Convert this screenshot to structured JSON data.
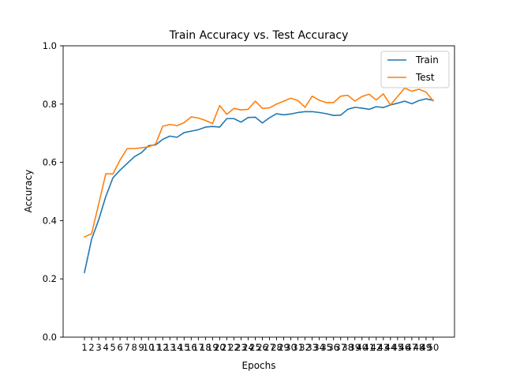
{
  "chart_data": {
    "type": "line",
    "title": "Train Accuracy vs. Test Accuracy",
    "xlabel": "Epochs",
    "ylabel": "Accuracy",
    "ylim": [
      0.0,
      1.0
    ],
    "yticks": [
      "0.0",
      "0.2",
      "0.4",
      "0.6",
      "0.8",
      "1.0"
    ],
    "grid": false,
    "legend_position": "top-right",
    "x": [
      1,
      2,
      3,
      4,
      5,
      6,
      7,
      8,
      9,
      10,
      11,
      12,
      13,
      14,
      15,
      16,
      17,
      18,
      19,
      20,
      21,
      22,
      23,
      24,
      25,
      26,
      27,
      28,
      29,
      30,
      31,
      32,
      33,
      34,
      35,
      36,
      37,
      38,
      39,
      40,
      41,
      42,
      43,
      44,
      45,
      46,
      47,
      48,
      49,
      50
    ],
    "series": [
      {
        "name": "Train",
        "color": "#1f77b4",
        "values": [
          0.222,
          0.336,
          0.403,
          0.483,
          0.547,
          0.573,
          0.596,
          0.619,
          0.633,
          0.657,
          0.66,
          0.679,
          0.69,
          0.686,
          0.702,
          0.707,
          0.712,
          0.721,
          0.723,
          0.721,
          0.75,
          0.75,
          0.738,
          0.754,
          0.755,
          0.735,
          0.753,
          0.767,
          0.763,
          0.766,
          0.771,
          0.774,
          0.774,
          0.771,
          0.767,
          0.761,
          0.762,
          0.782,
          0.789,
          0.786,
          0.782,
          0.791,
          0.788,
          0.797,
          0.803,
          0.81,
          0.801,
          0.812,
          0.818,
          0.813
        ]
      },
      {
        "name": "Test",
        "color": "#ff7f0e",
        "values": [
          0.344,
          0.355,
          0.457,
          0.561,
          0.56,
          0.608,
          0.647,
          0.647,
          0.65,
          0.653,
          0.663,
          0.724,
          0.73,
          0.726,
          0.736,
          0.756,
          0.752,
          0.744,
          0.733,
          0.795,
          0.765,
          0.785,
          0.78,
          0.782,
          0.81,
          0.785,
          0.787,
          0.8,
          0.81,
          0.82,
          0.812,
          0.789,
          0.827,
          0.813,
          0.805,
          0.805,
          0.827,
          0.83,
          0.81,
          0.826,
          0.834,
          0.814,
          0.835,
          0.797,
          0.826,
          0.855,
          0.844,
          0.851,
          0.841,
          0.811
        ]
      }
    ]
  }
}
